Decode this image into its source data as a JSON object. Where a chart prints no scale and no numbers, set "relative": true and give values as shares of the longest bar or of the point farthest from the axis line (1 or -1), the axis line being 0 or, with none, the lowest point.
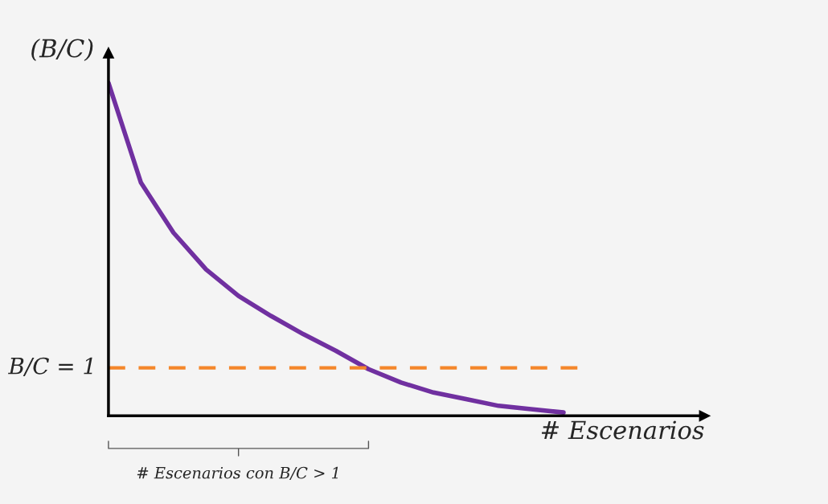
{
  "chart_data": {
    "type": "line",
    "relative": true,
    "xlabel": "# Escenarios",
    "ylabel": "(B/C)",
    "categories": [
      null,
      null,
      null,
      null,
      null,
      null,
      null,
      null,
      null,
      null,
      null,
      null,
      null,
      null,
      null
    ],
    "series": [
      {
        "color": "#7030a0",
        "values": [
          1.0,
          0.7,
          0.55,
          0.44,
          0.36,
          0.3,
          0.245,
          0.195,
          0.14,
          0.1,
          0.07,
          0.05,
          0.03,
          0.02,
          0.01
        ]
      }
    ],
    "ref_lines": [
      {
        "axis": "y",
        "value": 0.144,
        "color": "#f4862a",
        "line_style": "dashed"
      }
    ],
    "annotations": [
      "B/C = 1",
      "# Escenarios con B/C > 1"
    ],
    "tick_labels": false,
    "grid": false,
    "legend": false
  }
}
